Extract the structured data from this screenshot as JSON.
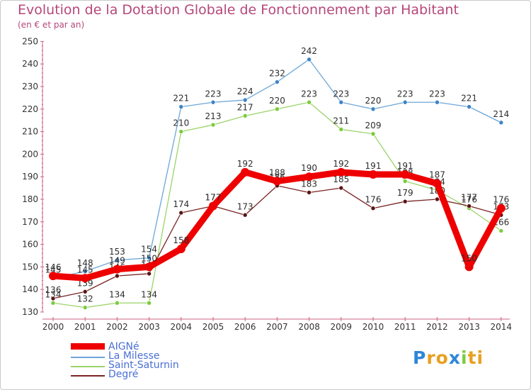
{
  "chart_data": {
    "type": "line",
    "title": "Evolution de la Dotation Globale de Fonctionnement par Habitant",
    "subtitle": "(en € et par an)",
    "xlabel": "",
    "ylabel": "",
    "categories": [
      "2000",
      "2001",
      "2002",
      "2003",
      "2004",
      "2005",
      "2006",
      "2007",
      "2008",
      "2009",
      "2010",
      "2011",
      "2012",
      "2013",
      "2014"
    ],
    "ylim": [
      130,
      250
    ],
    "yticks": [
      130,
      140,
      150,
      160,
      170,
      180,
      190,
      200,
      210,
      220,
      230,
      240,
      250
    ],
    "grid": false,
    "legend_position": "bottom-left",
    "series": [
      {
        "name": "La Milesse",
        "color": "#6ea6d8",
        "marker": "#3b84c8",
        "values": [
          145,
          148,
          153,
          154,
          221,
          223,
          224,
          232,
          242,
          223,
          220,
          223,
          223,
          221,
          214
        ]
      },
      {
        "name": "Saint-Saturnin",
        "color": "#9bd46a",
        "marker": "#7acc3c",
        "values": [
          134,
          132,
          134,
          134,
          210,
          213,
          217,
          220,
          223,
          211,
          209,
          188,
          184,
          176,
          166
        ]
      },
      {
        "name": "Degré",
        "color": "#7a2424",
        "marker": "#5a1414",
        "values": [
          136,
          139,
          146,
          147,
          174,
          177,
          173,
          186,
          183,
          185,
          176,
          179,
          180,
          177,
          173
        ]
      },
      {
        "name": "AIGNé",
        "color": "#ee0000",
        "marker": "#ee0000",
        "values": [
          146,
          145,
          149,
          150,
          158,
          177,
          192,
          188,
          190,
          192,
          191,
          191,
          187,
          150,
          176
        ]
      }
    ]
  },
  "logo": {
    "text": "Proxiti",
    "letters": [
      "P",
      "r",
      "o",
      "x",
      "i",
      "t",
      "i"
    ],
    "colors": [
      "#2e86d8",
      "#e8a020",
      "#e8a020",
      "#2e86d8",
      "#7acc3c",
      "#e8a020",
      "#e8a020"
    ]
  }
}
